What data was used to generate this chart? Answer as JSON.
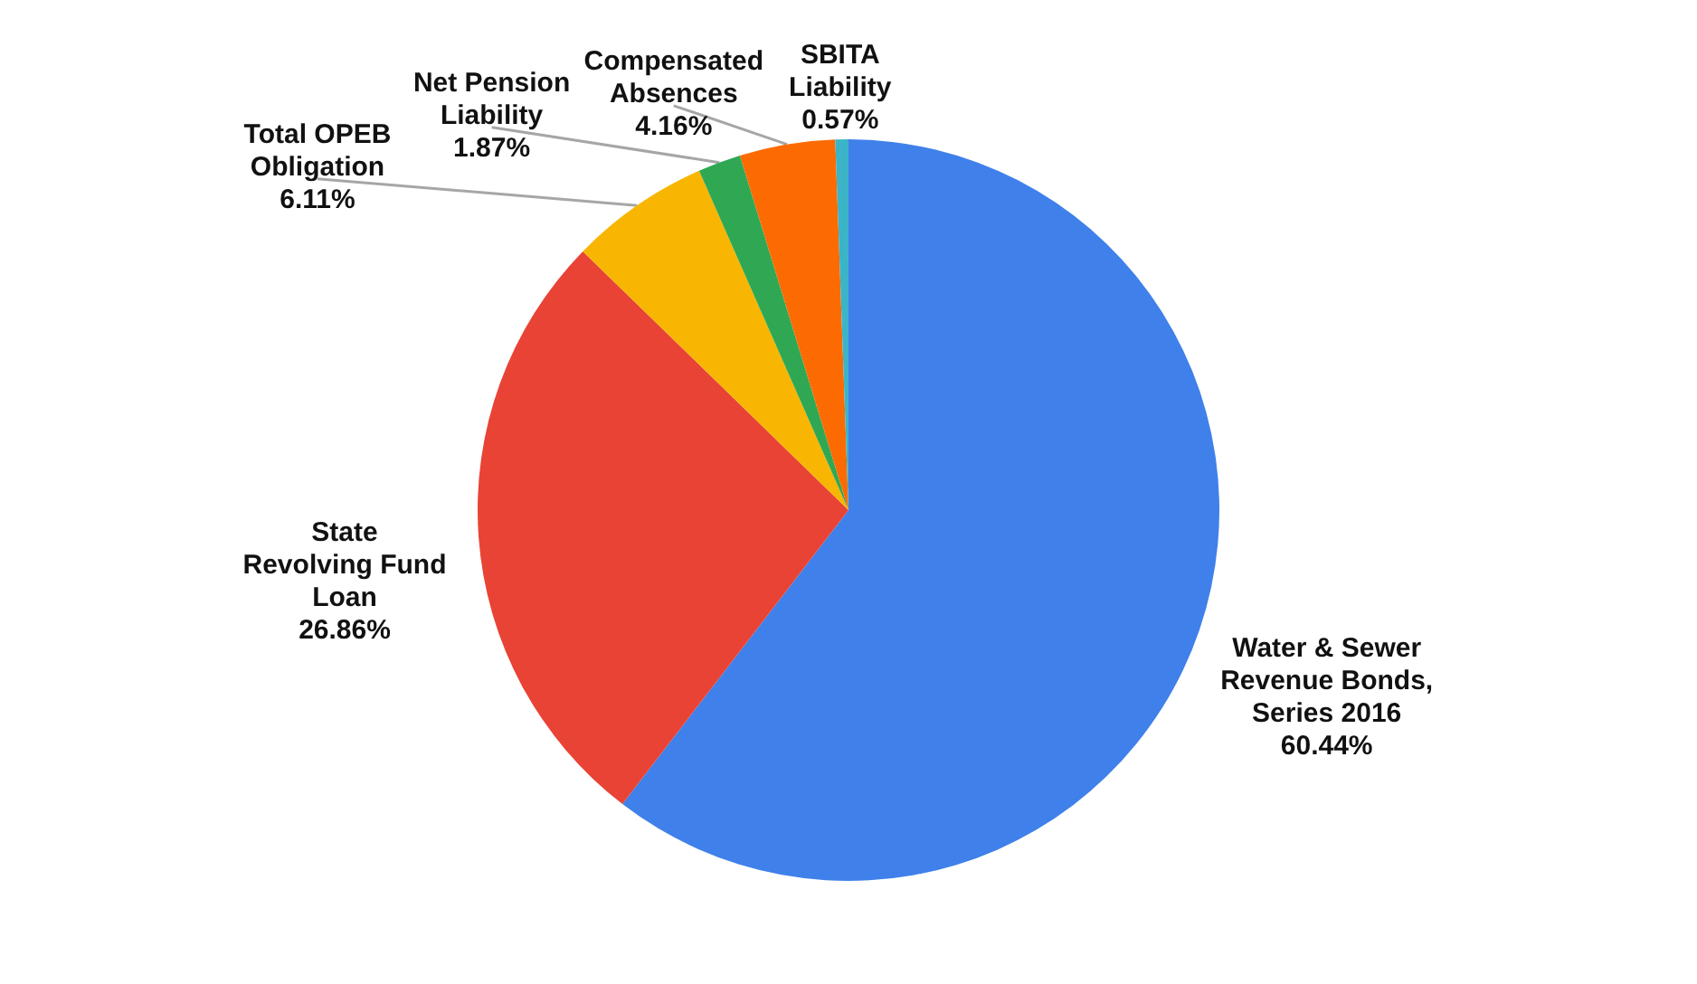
{
  "chart_data": {
    "type": "pie",
    "categories": [
      "Water & Sewer Revenue Bonds, Series 2016",
      "State Revolving Fund Loan",
      "Total OPEB Obligation",
      "Net Pension Liability",
      "Compensated Absences",
      "SBITA Liability"
    ],
    "values": [
      60.44,
      26.86,
      6.11,
      1.87,
      4.16,
      0.57
    ],
    "value_labels": [
      "60.44%",
      "26.86%",
      "6.11%",
      "1.87%",
      "4.16%",
      "0.57%"
    ],
    "colors": [
      "#3f80ea",
      "#e84335",
      "#f8b602",
      "#30a853",
      "#fc6b02",
      "#3cb4c8"
    ]
  }
}
